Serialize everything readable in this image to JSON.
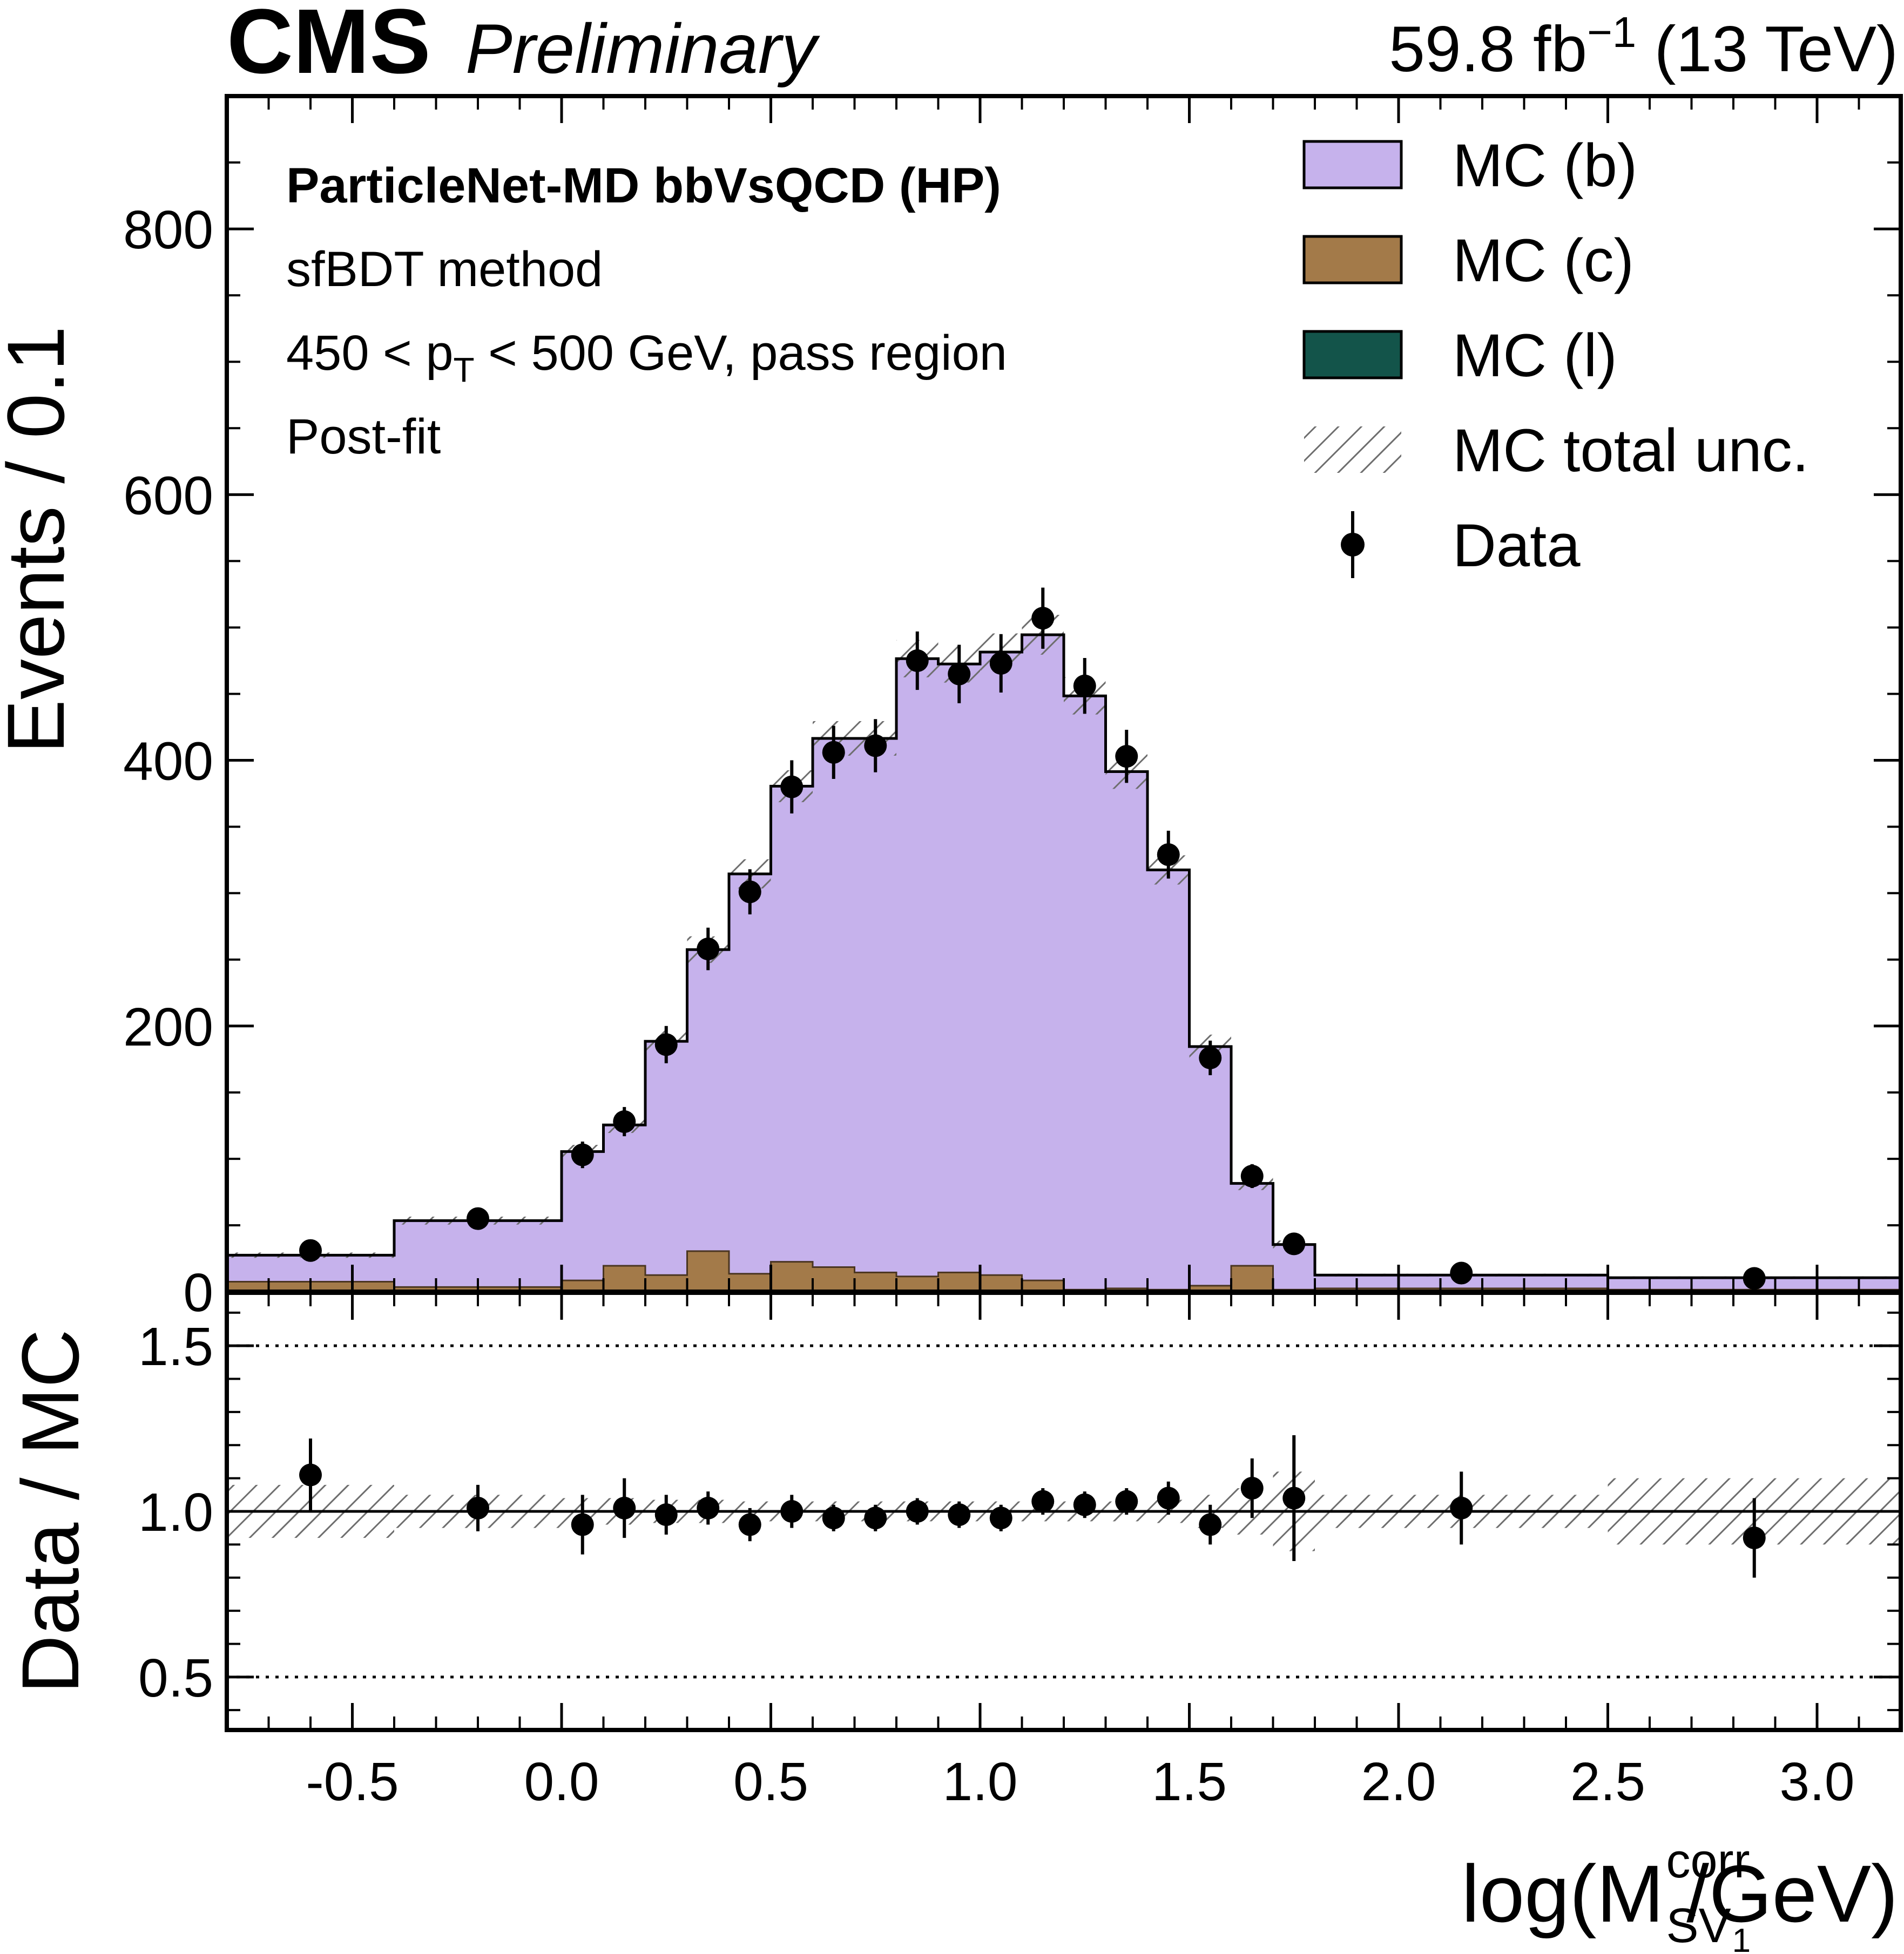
{
  "header": {
    "experiment": "CMS",
    "status": "Preliminary",
    "lumi": "59.8 fb",
    "lumi_sup": "−1",
    "energy": "(13 TeV)"
  },
  "annotations": {
    "line1": "ParticleNet-MD bbVsQCD (HP)",
    "line2": "sfBDT method",
    "line3_pre": "450 < p",
    "line3_sub": "T",
    "line3_post": " < 500 GeV, pass region",
    "line4": "Post-fit"
  },
  "legend": {
    "items": [
      {
        "label": "MC (b)",
        "type": "fill",
        "color": "#c6b2ec"
      },
      {
        "label": "MC (c)",
        "type": "fill",
        "color": "#a37a49"
      },
      {
        "label": "MC (l)",
        "type": "fill",
        "color": "#13544a"
      },
      {
        "label": "MC total unc.",
        "type": "hatch",
        "color": "#555555"
      },
      {
        "label": "Data",
        "type": "marker",
        "color": "#000000"
      }
    ]
  },
  "colors": {
    "mc_b": "#c6b2ec",
    "mc_c": "#a37a49",
    "mc_l": "#13544a",
    "hatch": "#6e6e6e",
    "data": "#000000"
  },
  "chart_data": {
    "type": "bar",
    "stacked": true,
    "x_range": [
      -0.8,
      3.2
    ],
    "bin_edges": [
      -0.8,
      -0.4,
      0.0,
      0.1,
      0.2,
      0.3,
      0.4,
      0.5,
      0.6,
      0.7,
      0.8,
      0.9,
      1.0,
      1.1,
      1.2,
      1.3,
      1.4,
      1.5,
      1.6,
      1.7,
      1.8,
      2.5,
      3.2
    ],
    "series": [
      {
        "name": "MC (l)",
        "values": [
          0.5,
          0.5,
          0.5,
          0.5,
          0.5,
          0.5,
          0.5,
          0.5,
          0.5,
          0.5,
          0.5,
          0.5,
          0.5,
          0.5,
          0.5,
          0.5,
          0.5,
          0.5,
          0.5,
          0.5,
          0.5,
          0.5
        ]
      },
      {
        "name": "MC (c)",
        "values": [
          7,
          3,
          8,
          19,
          12,
          30,
          13,
          22,
          18,
          14,
          11,
          14,
          12,
          8,
          1,
          2,
          1,
          4,
          19,
          1,
          2,
          1
        ]
      },
      {
        "name": "MC (b)",
        "values": [
          20,
          50,
          97,
          106,
          176,
          227,
          301,
          358,
          398,
          402,
          465,
          458,
          469,
          486,
          447,
          389,
          316,
          180,
          62,
          34,
          10,
          9
        ]
      }
    ],
    "mc_total": [
      27.5,
      53.5,
      105.5,
      125.5,
      188.5,
      257.5,
      314.5,
      380.5,
      416.5,
      416.5,
      476.5,
      472.5,
      481.5,
      494.5,
      448.5,
      391.5,
      317.5,
      184.5,
      81.5,
      35.5,
      12.5,
      10.5
    ],
    "mc_unc": [
      2,
      3,
      5,
      6,
      8,
      10,
      11,
      12,
      13,
      13,
      14,
      14,
      14,
      15,
      14,
      13,
      11,
      9,
      5,
      3,
      1,
      1
    ],
    "data": {
      "x": [
        -0.6,
        -0.2,
        0.05,
        0.15,
        0.25,
        0.35,
        0.45,
        0.55,
        0.65,
        0.75,
        0.85,
        0.95,
        1.05,
        1.15,
        1.25,
        1.35,
        1.45,
        1.55,
        1.65,
        1.75,
        2.15,
        2.85
      ],
      "y": [
        31,
        55,
        103,
        128,
        186,
        258,
        301,
        380,
        406,
        411,
        475,
        465,
        473,
        507,
        456,
        403,
        329,
        176,
        87,
        36,
        14,
        10
      ],
      "yerr": [
        6,
        7,
        10,
        11,
        14,
        16,
        17,
        20,
        20,
        20,
        22,
        22,
        22,
        23,
        21,
        20,
        18,
        13,
        9,
        6,
        4,
        3
      ]
    },
    "ratio": {
      "x": [
        -0.6,
        -0.2,
        0.05,
        0.15,
        0.25,
        0.35,
        0.45,
        0.55,
        0.65,
        0.75,
        0.85,
        0.95,
        1.05,
        1.15,
        1.25,
        1.35,
        1.45,
        1.55,
        1.65,
        1.75,
        2.15,
        2.85
      ],
      "y": [
        1.11,
        1.01,
        0.96,
        1.01,
        0.99,
        1.01,
        0.96,
        1.0,
        0.98,
        0.98,
        1.0,
        0.99,
        0.98,
        1.03,
        1.02,
        1.03,
        1.04,
        0.96,
        1.07,
        1.04,
        1.01,
        0.92
      ],
      "yerr": [
        0.11,
        0.07,
        0.09,
        0.09,
        0.06,
        0.05,
        0.05,
        0.05,
        0.04,
        0.04,
        0.04,
        0.04,
        0.04,
        0.04,
        0.04,
        0.04,
        0.05,
        0.06,
        0.09,
        0.19,
        0.11,
        0.12
      ],
      "unc": [
        0.08,
        0.05,
        0.04,
        0.04,
        0.035,
        0.035,
        0.03,
        0.03,
        0.03,
        0.03,
        0.03,
        0.03,
        0.03,
        0.03,
        0.03,
        0.03,
        0.035,
        0.05,
        0.07,
        0.12,
        0.05,
        0.1
      ],
      "reference_lines": [
        0.5,
        1.5
      ]
    },
    "main_ylim": [
      0,
      900
    ],
    "main_yticks": [
      0,
      200,
      400,
      600,
      800
    ],
    "main_ytick_labels": [
      "0",
      "200",
      "400",
      "600",
      "800"
    ],
    "ratio_ylim": [
      0.34,
      1.66
    ],
    "ratio_yticks": [
      0.5,
      1.0,
      1.5
    ],
    "ratio_ytick_labels": [
      "0.5",
      "1.0",
      "1.5"
    ],
    "xticks": [
      -0.5,
      0.0,
      0.5,
      1.0,
      1.5,
      2.0,
      2.5,
      3.0
    ],
    "xtick_labels": [
      "-0.5",
      "0.0",
      "0.5",
      "1.0",
      "1.5",
      "2.0",
      "2.5",
      "3.0"
    ],
    "ylabel": "Events / 0.1",
    "ratio_ylabel": "Data / MC",
    "xlabel_pre": "log(M",
    "xlabel_sup": "corr",
    "xlabel_sub": "SV",
    "xlabel_subsub": "1",
    "xlabel_post": " /GeV)",
    "legend_position": "top-right"
  }
}
